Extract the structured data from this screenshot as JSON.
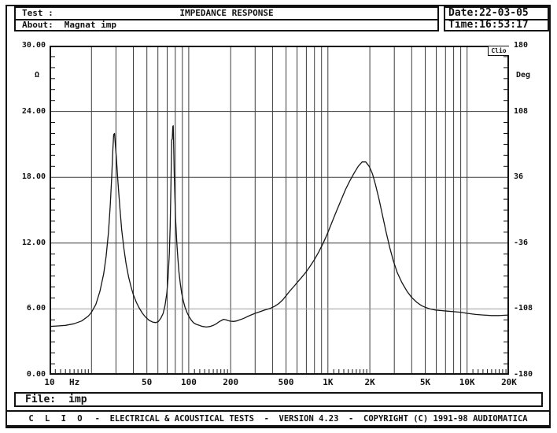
{
  "header": {
    "test_label": "Test :",
    "test_value": "",
    "title": "IMPEDANCE RESPONSE",
    "about_label": "About:",
    "about_value": "Magnat imp",
    "date_label": "Date:",
    "date_value": "22-03-05",
    "time_label": "Time:",
    "time_value": "16:53:17"
  },
  "watermark": "Clio",
  "file_bar": {
    "label": "File:",
    "value": "imp"
  },
  "footer": {
    "brand": "C L I O",
    "text": "-  ELECTRICAL & ACOUSTICAL TESTS  -  VERSION 4.23  -  COPYRIGHT (C) 1991-98 AUDIOMATICA"
  },
  "chart_data": {
    "type": "line",
    "title": "IMPEDANCE RESPONSE",
    "grid": true,
    "legend": "none",
    "x_axis": {
      "scale": "log",
      "min": 10,
      "max": 20000,
      "unit": "Hz",
      "ticks": [
        {
          "f": 10,
          "label": "10"
        },
        {
          "f": 50,
          "label": "50"
        },
        {
          "f": 100,
          "label": "100"
        },
        {
          "f": 200,
          "label": "200"
        },
        {
          "f": 500,
          "label": "500"
        },
        {
          "f": 1000,
          "label": "1K"
        },
        {
          "f": 2000,
          "label": "2K"
        },
        {
          "f": 5000,
          "label": "5K"
        },
        {
          "f": 10000,
          "label": "10K"
        },
        {
          "f": 20000,
          "label": "20K"
        }
      ]
    },
    "y_left": {
      "min": 0,
      "max": 30,
      "unit": "Ω",
      "quantity": "impedance_ohm",
      "ticks": [
        {
          "v": 30,
          "label": "30.00"
        },
        {
          "v": 24,
          "label": "24.00"
        },
        {
          "v": 18,
          "label": "18.00"
        },
        {
          "v": 12,
          "label": "12.00"
        },
        {
          "v": 6,
          "label": "6.00"
        },
        {
          "v": 0,
          "label": "0.00"
        }
      ]
    },
    "y_right": {
      "min": -180,
      "max": 180,
      "unit": "Deg",
      "quantity": "phase_deg",
      "ticks": [
        {
          "v": 180,
          "label": "180"
        },
        {
          "v": 108,
          "label": "108"
        },
        {
          "v": 36,
          "label": "36"
        },
        {
          "v": -36,
          "label": "-36"
        },
        {
          "v": -108,
          "label": "-108"
        },
        {
          "v": -180,
          "label": "-180"
        }
      ]
    },
    "x_gridlines": [
      20,
      30,
      40,
      50,
      60,
      70,
      80,
      90,
      100,
      200,
      300,
      400,
      500,
      600,
      700,
      800,
      900,
      1000,
      2000,
      3000,
      4000,
      5000,
      6000,
      7000,
      8000,
      9000,
      10000
    ],
    "y_gridlines": [
      {
        "v": 24
      },
      {
        "v": 18
      },
      {
        "v": 12
      },
      {
        "v": 6,
        "light": true
      }
    ],
    "series": [
      {
        "name": "impedance_ohm_vs_hz",
        "color": "#161616",
        "points": [
          [
            10,
            4.4
          ],
          [
            11.5,
            4.45
          ],
          [
            13,
            4.5
          ],
          [
            15,
            4.65
          ],
          [
            17,
            4.9
          ],
          [
            19,
            5.35
          ],
          [
            20,
            5.7
          ],
          [
            21.5,
            6.4
          ],
          [
            23,
            7.6
          ],
          [
            24.5,
            9.2
          ],
          [
            25.5,
            10.8
          ],
          [
            26.5,
            13.0
          ],
          [
            27.3,
            15.5
          ],
          [
            28,
            18.2
          ],
          [
            28.5,
            20.6
          ],
          [
            28.9,
            21.9
          ],
          [
            29.3,
            22.0
          ],
          [
            29.7,
            21.0
          ],
          [
            30.2,
            19.8
          ],
          [
            31,
            17.6
          ],
          [
            32,
            15.2
          ],
          [
            33,
            13.2
          ],
          [
            34.2,
            11.5
          ],
          [
            35.5,
            10.1
          ],
          [
            37,
            8.9
          ],
          [
            38.5,
            8.0
          ],
          [
            40,
            7.3
          ],
          [
            42,
            6.6
          ],
          [
            44,
            6.1
          ],
          [
            46.5,
            5.6
          ],
          [
            49,
            5.25
          ],
          [
            52,
            4.95
          ],
          [
            55,
            4.8
          ],
          [
            58,
            4.75
          ],
          [
            60.5,
            4.85
          ],
          [
            63,
            5.15
          ],
          [
            65.5,
            5.6
          ],
          [
            67.5,
            6.3
          ],
          [
            69.5,
            7.4
          ],
          [
            71,
            8.8
          ],
          [
            72.5,
            11.0
          ],
          [
            73.5,
            13.5
          ],
          [
            74.3,
            16.5
          ],
          [
            75,
            19.5
          ],
          [
            75.5,
            21.4
          ],
          [
            76.2,
            21.5
          ],
          [
            76.8,
            22.6
          ],
          [
            77.4,
            22.7
          ],
          [
            78,
            20.8
          ],
          [
            78.6,
            18.5
          ],
          [
            79.5,
            16.2
          ],
          [
            80.5,
            14.2
          ],
          [
            82,
            12.1
          ],
          [
            83.5,
            10.6
          ],
          [
            85,
            9.4
          ],
          [
            87,
            8.3
          ],
          [
            89,
            7.4
          ],
          [
            91.5,
            6.7
          ],
          [
            94,
            6.15
          ],
          [
            97,
            5.7
          ],
          [
            100,
            5.35
          ],
          [
            104,
            5.0
          ],
          [
            108,
            4.75
          ],
          [
            113,
            4.6
          ],
          [
            119,
            4.5
          ],
          [
            126,
            4.4
          ],
          [
            134,
            4.35
          ],
          [
            142,
            4.4
          ],
          [
            150,
            4.5
          ],
          [
            158,
            4.65
          ],
          [
            166,
            4.85
          ],
          [
            172,
            4.95
          ],
          [
            178,
            5.05
          ],
          [
            185,
            5.0
          ],
          [
            193,
            4.92
          ],
          [
            200,
            4.88
          ],
          [
            210,
            4.86
          ],
          [
            220,
            4.9
          ],
          [
            232,
            5.0
          ],
          [
            246,
            5.12
          ],
          [
            262,
            5.28
          ],
          [
            280,
            5.45
          ],
          [
            300,
            5.6
          ],
          [
            325,
            5.75
          ],
          [
            355,
            5.92
          ],
          [
            385,
            6.05
          ],
          [
            415,
            6.25
          ],
          [
            445,
            6.5
          ],
          [
            475,
            6.85
          ],
          [
            500,
            7.2
          ],
          [
            530,
            7.6
          ],
          [
            565,
            8.0
          ],
          [
            600,
            8.4
          ],
          [
            645,
            8.85
          ],
          [
            695,
            9.35
          ],
          [
            745,
            9.9
          ],
          [
            800,
            10.5
          ],
          [
            860,
            11.2
          ],
          [
            925,
            12.0
          ],
          [
            995,
            12.9
          ],
          [
            1070,
            13.9
          ],
          [
            1150,
            14.9
          ],
          [
            1240,
            15.9
          ],
          [
            1340,
            16.9
          ],
          [
            1440,
            17.7
          ],
          [
            1545,
            18.4
          ],
          [
            1650,
            19.0
          ],
          [
            1760,
            19.4
          ],
          [
            1870,
            19.4
          ],
          [
            1980,
            19.0
          ],
          [
            2090,
            18.3
          ],
          [
            2200,
            17.3
          ],
          [
            2330,
            16.0
          ],
          [
            2470,
            14.5
          ],
          [
            2620,
            13.0
          ],
          [
            2780,
            11.6
          ],
          [
            2950,
            10.4
          ],
          [
            3150,
            9.3
          ],
          [
            3400,
            8.4
          ],
          [
            3700,
            7.6
          ],
          [
            4000,
            7.05
          ],
          [
            4350,
            6.6
          ],
          [
            4700,
            6.3
          ],
          [
            5000,
            6.15
          ],
          [
            5400,
            6.0
          ],
          [
            5900,
            5.9
          ],
          [
            6500,
            5.85
          ],
          [
            7200,
            5.8
          ],
          [
            8000,
            5.75
          ],
          [
            9000,
            5.7
          ],
          [
            10000,
            5.6
          ],
          [
            11500,
            5.5
          ],
          [
            13000,
            5.45
          ],
          [
            15000,
            5.4
          ],
          [
            17000,
            5.4
          ],
          [
            20000,
            5.45
          ]
        ]
      }
    ],
    "annotations": [
      "Clio watermark box at top-right inside plot"
    ],
    "colors": {
      "grid": "#3d3d3d",
      "grid_light": "#9b9b9b",
      "curve": "#161616",
      "frame": "#111111"
    }
  }
}
